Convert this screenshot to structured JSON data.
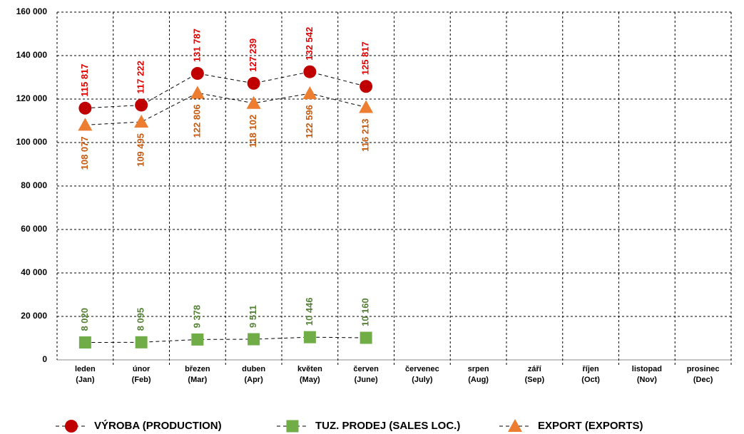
{
  "chart_data": {
    "type": "line",
    "categories": [
      "leden\n(Jan)",
      "únor\n(Feb)",
      "březen\n(Mar)",
      "duben\n(Apr)",
      "květen\n(May)",
      "červen\n(June)",
      "červenec\n(July)",
      "srpen\n(Aug)",
      "září\n(Sep)",
      "říjen\n(Oct)",
      "listopad\n(Nov)",
      "prosinec\n(Dec)"
    ],
    "series": [
      {
        "name": "VÝROBA (PRODUCTION)",
        "color": "#c00000",
        "label_color": "#e00000",
        "marker": "circle",
        "values": [
          115817,
          117222,
          131787,
          127239,
          132542,
          125817,
          null,
          null,
          null,
          null,
          null,
          null
        ],
        "value_labels": [
          "115 817",
          "117 222",
          "131 787",
          "127 239",
          "132 542",
          "125 817",
          null,
          null,
          null,
          null,
          null,
          null
        ]
      },
      {
        "name": "TUZ. PRODEJ (SALES LOC.)",
        "color": "#70ad47",
        "label_color": "#548235",
        "marker": "square",
        "values": [
          8020,
          8095,
          9378,
          9511,
          10446,
          10160,
          null,
          null,
          null,
          null,
          null,
          null
        ],
        "value_labels": [
          "8 020",
          "8 095",
          "9 378",
          "9 511",
          "10 446",
          "10 160",
          null,
          null,
          null,
          null,
          null,
          null
        ]
      },
      {
        "name": "EXPORT (EXPORTS)",
        "color": "#ed7d31",
        "label_color": "#c55a11",
        "marker": "triangle",
        "values": [
          108077,
          109495,
          122806,
          118102,
          122596,
          116213,
          null,
          null,
          null,
          null,
          null,
          null
        ],
        "value_labels": [
          "108 077",
          "109 495",
          "122 806",
          "118 102",
          "122 596",
          "116 213",
          null,
          null,
          null,
          null,
          null,
          null
        ]
      }
    ],
    "ylim": [
      0,
      160000
    ],
    "yticks": [
      0,
      {
        "value": 20000,
        "label": "20 000"
      },
      {
        "value": 40000,
        "label": "40 000"
      },
      {
        "value": 60000,
        "label": "60 000"
      },
      {
        "value": 80000,
        "label": "80 000"
      },
      {
        "value": 100000,
        "label": "100 000"
      },
      {
        "value": 120000,
        "label": "120 000"
      },
      {
        "value": 140000,
        "label": "140 000"
      },
      {
        "value": 160000,
        "label": "160 000"
      }
    ],
    "grid": true,
    "legend": "bottom"
  }
}
